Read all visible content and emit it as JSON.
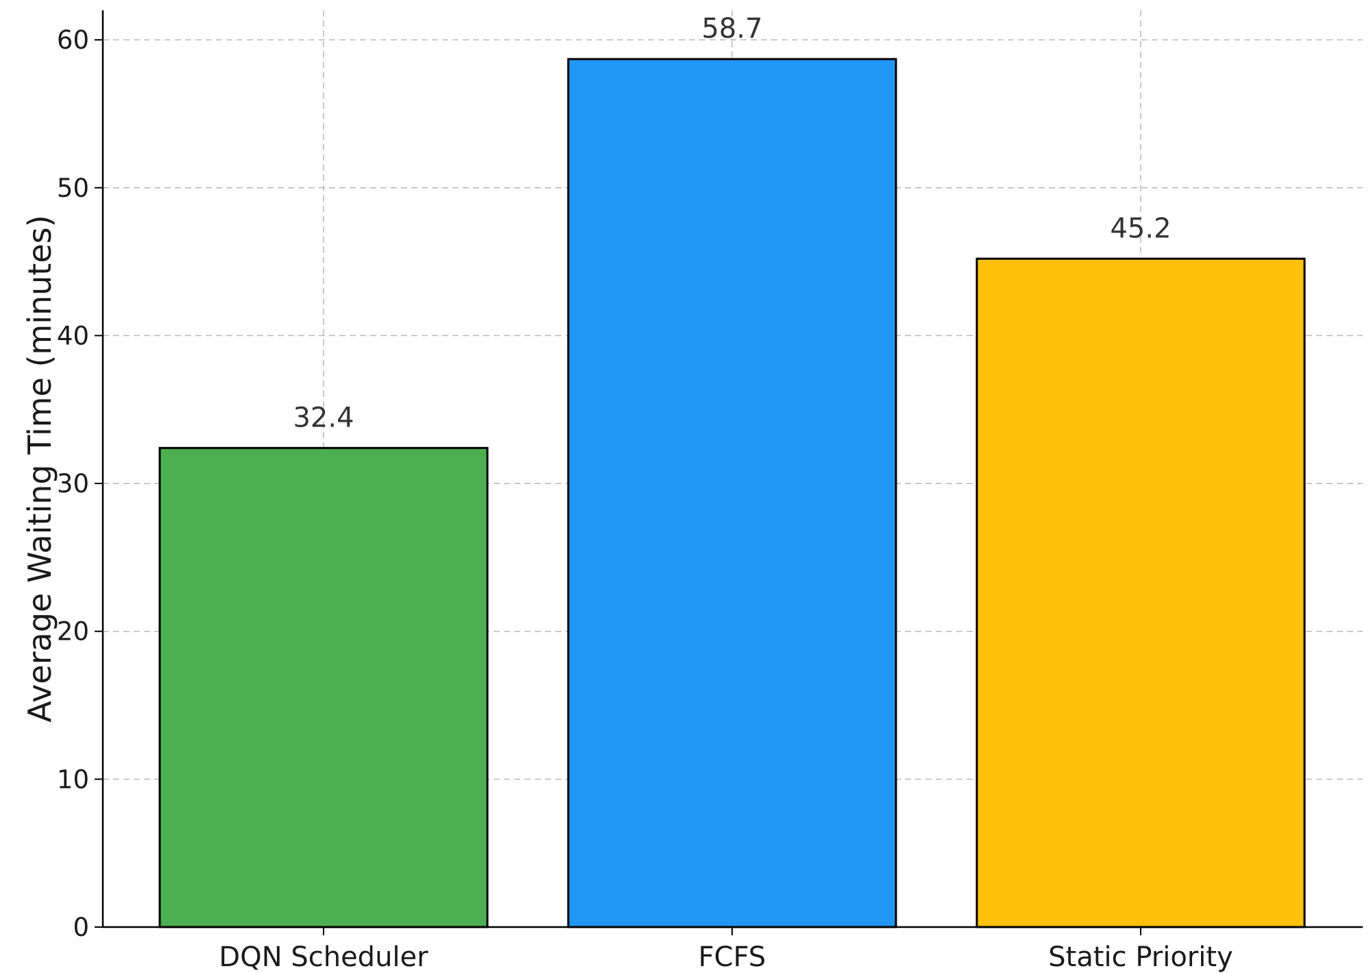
{
  "chart_data": {
    "type": "bar",
    "title": "",
    "xlabel": "",
    "ylabel": "Average Waiting Time (minutes)",
    "ylim": [
      0,
      62
    ],
    "yticks": [
      0,
      10,
      20,
      30,
      40,
      50,
      60
    ],
    "grid": true,
    "categories": [
      "DQN Scheduler",
      "FCFS",
      "Static Priority"
    ],
    "values": [
      32.4,
      58.7,
      45.2
    ],
    "value_labels": [
      "32.4",
      "58.7",
      "45.2"
    ],
    "colors": [
      "#4caf50",
      "#2196f3",
      "#ffc107"
    ]
  }
}
